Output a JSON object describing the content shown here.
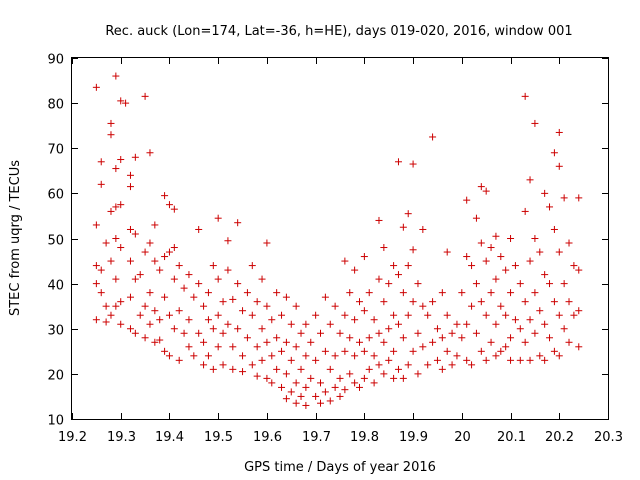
{
  "chart_data": {
    "type": "scatter",
    "title": "Rec. auck (Lon=174, Lat=-36, h=HE), days 019-020, 2016, window 001",
    "xlabel": "GPS time / Days of year 2016",
    "ylabel": "STEC from uqrg / TECUs",
    "xlim": [
      19.2,
      20.3
    ],
    "ylim": [
      10,
      90
    ],
    "x_ticks": [
      "19.2",
      "19.3",
      "19.4",
      "19.5",
      "19.6",
      "19.7",
      "19.8",
      "19.9",
      "20",
      "20.1",
      "20.2",
      "20.3"
    ],
    "y_ticks": [
      "10",
      "20",
      "30",
      "40",
      "50",
      "60",
      "70",
      "80",
      "90"
    ],
    "grid": false,
    "marker": "+",
    "series_color": "#cc0000",
    "points": [
      [
        19.25,
        83.5
      ],
      [
        19.25,
        53
      ],
      [
        19.25,
        44
      ],
      [
        19.25,
        40
      ],
      [
        19.25,
        32
      ],
      [
        19.26,
        67
      ],
      [
        19.26,
        62
      ],
      [
        19.26,
        43
      ],
      [
        19.26,
        38
      ],
      [
        19.27,
        49
      ],
      [
        19.27,
        35
      ],
      [
        19.27,
        31.5
      ],
      [
        19.28,
        75.5
      ],
      [
        19.28,
        73
      ],
      [
        19.28,
        56
      ],
      [
        19.28,
        45
      ],
      [
        19.28,
        33
      ],
      [
        19.29,
        86
      ],
      [
        19.29,
        65.5
      ],
      [
        19.29,
        57
      ],
      [
        19.29,
        50
      ],
      [
        19.29,
        41
      ],
      [
        19.29,
        35
      ],
      [
        19.3,
        80.5
      ],
      [
        19.3,
        67.5
      ],
      [
        19.3,
        57.5
      ],
      [
        19.3,
        48
      ],
      [
        19.3,
        36
      ],
      [
        19.3,
        31
      ],
      [
        19.31,
        80
      ],
      [
        19.32,
        64
      ],
      [
        19.32,
        61.5
      ],
      [
        19.32,
        52
      ],
      [
        19.32,
        45
      ],
      [
        19.32,
        37
      ],
      [
        19.32,
        30
      ],
      [
        19.33,
        68
      ],
      [
        19.33,
        51
      ],
      [
        19.33,
        41
      ],
      [
        19.33,
        29
      ],
      [
        19.34,
        42
      ],
      [
        19.34,
        33
      ],
      [
        19.35,
        81.5
      ],
      [
        19.35,
        47
      ],
      [
        19.35,
        35
      ],
      [
        19.35,
        28
      ],
      [
        19.36,
        69
      ],
      [
        19.36,
        49
      ],
      [
        19.36,
        38
      ],
      [
        19.36,
        31
      ],
      [
        19.37,
        53
      ],
      [
        19.37,
        45
      ],
      [
        19.37,
        34
      ],
      [
        19.37,
        27
      ],
      [
        19.38,
        43
      ],
      [
        19.38,
        32
      ],
      [
        19.38,
        27.5
      ],
      [
        19.39,
        59.5
      ],
      [
        19.39,
        46
      ],
      [
        19.39,
        37
      ],
      [
        19.39,
        25
      ],
      [
        19.4,
        57.5
      ],
      [
        19.4,
        47
      ],
      [
        19.4,
        33
      ],
      [
        19.4,
        24
      ],
      [
        19.41,
        56.5
      ],
      [
        19.41,
        48
      ],
      [
        19.41,
        41
      ],
      [
        19.41,
        30
      ],
      [
        19.42,
        44
      ],
      [
        19.42,
        34
      ],
      [
        19.42,
        23
      ],
      [
        19.43,
        39
      ],
      [
        19.43,
        29
      ],
      [
        19.44,
        42
      ],
      [
        19.44,
        32
      ],
      [
        19.44,
        26
      ],
      [
        19.45,
        37
      ],
      [
        19.45,
        24
      ],
      [
        19.46,
        52
      ],
      [
        19.46,
        40
      ],
      [
        19.46,
        29
      ],
      [
        19.47,
        35
      ],
      [
        19.47,
        27
      ],
      [
        19.47,
        22
      ],
      [
        19.48,
        38
      ],
      [
        19.48,
        32
      ],
      [
        19.48,
        24
      ],
      [
        19.49,
        44
      ],
      [
        19.49,
        30
      ],
      [
        19.49,
        21
      ],
      [
        19.5,
        54.5
      ],
      [
        19.5,
        41
      ],
      [
        19.5,
        33
      ],
      [
        19.5,
        26
      ],
      [
        19.51,
        36
      ],
      [
        19.51,
        29
      ],
      [
        19.51,
        22
      ],
      [
        19.52,
        49.5
      ],
      [
        19.52,
        43
      ],
      [
        19.52,
        31
      ],
      [
        19.53,
        36.5
      ],
      [
        19.53,
        26
      ],
      [
        19.53,
        21
      ],
      [
        19.54,
        53.5
      ],
      [
        19.54,
        40
      ],
      [
        19.54,
        30
      ],
      [
        19.55,
        34
      ],
      [
        19.55,
        24
      ],
      [
        19.55,
        20.5
      ],
      [
        19.56,
        38
      ],
      [
        19.56,
        28
      ],
      [
        19.57,
        44
      ],
      [
        19.57,
        33
      ],
      [
        19.57,
        22
      ],
      [
        19.58,
        36
      ],
      [
        19.58,
        26
      ],
      [
        19.58,
        19.5
      ],
      [
        19.59,
        41
      ],
      [
        19.59,
        30
      ],
      [
        19.59,
        23
      ],
      [
        19.6,
        49
      ],
      [
        19.6,
        35
      ],
      [
        19.6,
        27
      ],
      [
        19.6,
        19
      ],
      [
        19.61,
        32
      ],
      [
        19.61,
        24
      ],
      [
        19.61,
        18
      ],
      [
        19.62,
        38
      ],
      [
        19.62,
        28
      ],
      [
        19.62,
        21
      ],
      [
        19.63,
        33
      ],
      [
        19.63,
        25
      ],
      [
        19.63,
        17
      ],
      [
        19.64,
        37
      ],
      [
        19.64,
        27
      ],
      [
        19.64,
        20
      ],
      [
        19.64,
        14.5
      ],
      [
        19.65,
        31
      ],
      [
        19.65,
        23
      ],
      [
        19.65,
        16
      ],
      [
        19.66,
        35
      ],
      [
        19.66,
        26
      ],
      [
        19.66,
        18
      ],
      [
        19.66,
        13.5
      ],
      [
        19.67,
        29
      ],
      [
        19.67,
        21
      ],
      [
        19.67,
        15
      ],
      [
        19.68,
        31
      ],
      [
        19.68,
        24
      ],
      [
        19.68,
        17
      ],
      [
        19.68,
        13
      ],
      [
        19.69,
        27
      ],
      [
        19.69,
        19
      ],
      [
        19.7,
        33
      ],
      [
        19.7,
        23
      ],
      [
        19.7,
        15
      ],
      [
        19.71,
        29
      ],
      [
        19.71,
        18
      ],
      [
        19.71,
        13.5
      ],
      [
        19.72,
        37
      ],
      [
        19.72,
        25
      ],
      [
        19.72,
        16
      ],
      [
        19.73,
        31
      ],
      [
        19.73,
        21
      ],
      [
        19.73,
        14
      ],
      [
        19.74,
        35
      ],
      [
        19.74,
        24
      ],
      [
        19.74,
        17
      ],
      [
        19.75,
        29
      ],
      [
        19.75,
        19
      ],
      [
        19.75,
        15
      ],
      [
        19.76,
        45
      ],
      [
        19.76,
        33
      ],
      [
        19.76,
        25
      ],
      [
        19.76,
        16.5
      ],
      [
        19.77,
        38
      ],
      [
        19.77,
        28
      ],
      [
        19.77,
        20
      ],
      [
        19.78,
        43
      ],
      [
        19.78,
        32
      ],
      [
        19.78,
        24
      ],
      [
        19.78,
        18
      ],
      [
        19.79,
        36
      ],
      [
        19.79,
        27
      ],
      [
        19.79,
        17
      ],
      [
        19.8,
        46
      ],
      [
        19.8,
        34
      ],
      [
        19.8,
        25
      ],
      [
        19.8,
        19
      ],
      [
        19.81,
        38
      ],
      [
        19.81,
        28
      ],
      [
        19.81,
        21
      ],
      [
        19.82,
        32
      ],
      [
        19.82,
        24
      ],
      [
        19.82,
        18
      ],
      [
        19.83,
        54
      ],
      [
        19.83,
        41
      ],
      [
        19.83,
        29
      ],
      [
        19.83,
        22
      ],
      [
        19.84,
        48
      ],
      [
        19.84,
        36
      ],
      [
        19.84,
        27
      ],
      [
        19.84,
        20
      ],
      [
        19.85,
        40
      ],
      [
        19.85,
        30
      ],
      [
        19.85,
        23
      ],
      [
        19.86,
        44
      ],
      [
        19.86,
        33
      ],
      [
        19.86,
        25
      ],
      [
        19.86,
        19
      ],
      [
        19.87,
        67
      ],
      [
        19.87,
        42
      ],
      [
        19.87,
        31
      ],
      [
        19.87,
        21
      ],
      [
        19.88,
        52.5
      ],
      [
        19.88,
        38
      ],
      [
        19.88,
        28
      ],
      [
        19.88,
        19
      ],
      [
        19.89,
        55.5
      ],
      [
        19.89,
        44
      ],
      [
        19.89,
        33
      ],
      [
        19.89,
        22
      ],
      [
        19.9,
        66.5
      ],
      [
        19.9,
        47.5
      ],
      [
        19.9,
        36
      ],
      [
        19.9,
        25
      ],
      [
        19.91,
        40
      ],
      [
        19.91,
        29
      ],
      [
        19.91,
        20
      ],
      [
        19.92,
        52
      ],
      [
        19.92,
        35
      ],
      [
        19.92,
        26
      ],
      [
        19.93,
        33
      ],
      [
        19.93,
        22
      ],
      [
        19.94,
        72.5
      ],
      [
        19.94,
        36
      ],
      [
        19.94,
        27
      ],
      [
        19.95,
        30
      ],
      [
        19.95,
        23
      ],
      [
        19.96,
        38
      ],
      [
        19.96,
        28
      ],
      [
        19.96,
        21
      ],
      [
        19.97,
        47
      ],
      [
        19.97,
        33
      ],
      [
        19.97,
        25
      ],
      [
        19.98,
        29
      ],
      [
        19.98,
        22
      ],
      [
        19.99,
        31
      ],
      [
        19.99,
        24
      ],
      [
        20.0,
        38
      ],
      [
        20.0,
        28
      ],
      [
        20.01,
        58.5
      ],
      [
        20.01,
        46
      ],
      [
        20.01,
        31
      ],
      [
        20.01,
        23
      ],
      [
        20.02,
        44
      ],
      [
        20.02,
        35
      ],
      [
        20.02,
        22
      ],
      [
        20.03,
        54.5
      ],
      [
        20.03,
        40
      ],
      [
        20.03,
        29
      ],
      [
        20.04,
        61.5
      ],
      [
        20.04,
        49
      ],
      [
        20.04,
        36
      ],
      [
        20.04,
        25
      ],
      [
        20.05,
        60.5
      ],
      [
        20.05,
        45
      ],
      [
        20.05,
        33
      ],
      [
        20.05,
        23
      ],
      [
        20.06,
        48
      ],
      [
        20.06,
        38
      ],
      [
        20.06,
        27
      ],
      [
        20.07,
        50.5
      ],
      [
        20.07,
        41
      ],
      [
        20.07,
        31
      ],
      [
        20.07,
        24
      ],
      [
        20.08,
        46
      ],
      [
        20.08,
        35
      ],
      [
        20.08,
        25
      ],
      [
        20.09,
        43
      ],
      [
        20.09,
        33
      ],
      [
        20.09,
        26
      ],
      [
        20.1,
        50
      ],
      [
        20.1,
        38
      ],
      [
        20.1,
        28
      ],
      [
        20.1,
        23
      ],
      [
        20.11,
        44
      ],
      [
        20.11,
        32
      ],
      [
        20.12,
        40
      ],
      [
        20.12,
        30
      ],
      [
        20.12,
        23
      ],
      [
        20.13,
        81.5
      ],
      [
        20.13,
        56
      ],
      [
        20.13,
        36
      ],
      [
        20.13,
        27
      ],
      [
        20.14,
        63
      ],
      [
        20.14,
        45
      ],
      [
        20.14,
        32
      ],
      [
        20.14,
        23
      ],
      [
        20.15,
        75.5
      ],
      [
        20.15,
        50
      ],
      [
        20.15,
        38
      ],
      [
        20.15,
        29
      ],
      [
        20.16,
        47
      ],
      [
        20.16,
        34
      ],
      [
        20.16,
        24
      ],
      [
        20.17,
        60
      ],
      [
        20.17,
        42
      ],
      [
        20.17,
        31
      ],
      [
        20.17,
        23
      ],
      [
        20.18,
        57
      ],
      [
        20.18,
        40
      ],
      [
        20.18,
        28
      ],
      [
        20.19,
        69
      ],
      [
        20.19,
        52
      ],
      [
        20.19,
        36
      ],
      [
        20.19,
        25
      ],
      [
        20.2,
        73.5
      ],
      [
        20.2,
        66
      ],
      [
        20.2,
        47
      ],
      [
        20.2,
        33
      ],
      [
        20.2,
        24
      ],
      [
        20.21,
        59
      ],
      [
        20.21,
        40
      ],
      [
        20.21,
        30
      ],
      [
        20.22,
        49
      ],
      [
        20.22,
        36
      ],
      [
        20.22,
        27
      ],
      [
        20.23,
        44
      ],
      [
        20.23,
        33
      ],
      [
        20.24,
        59
      ],
      [
        20.24,
        43
      ],
      [
        20.24,
        34
      ],
      [
        20.24,
        26
      ]
    ]
  }
}
